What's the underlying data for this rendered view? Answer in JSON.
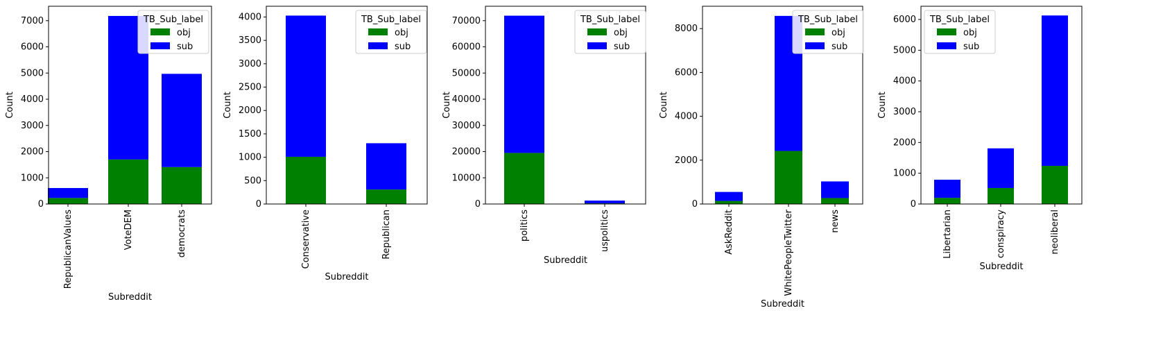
{
  "legend_title": "TB_Sub_label",
  "colors": {
    "obj": "#008000",
    "sub": "#0000ff"
  },
  "chart_data": [
    {
      "type": "bar",
      "stacked": true,
      "categories": [
        "RepublicanValues",
        "VoteDEM",
        "democrats"
      ],
      "series": [
        {
          "name": "obj",
          "values": [
            230,
            1700,
            1410
          ]
        },
        {
          "name": "sub",
          "values": [
            380,
            5480,
            3560
          ]
        }
      ],
      "xlabel": "Subreddit",
      "ylabel": "Count",
      "ylim": [
        0,
        7550
      ],
      "yticks": [
        "0",
        "1000",
        "2000",
        "3000",
        "4000",
        "5000",
        "6000",
        "7000"
      ],
      "legend": "top-right"
    },
    {
      "type": "bar",
      "stacked": true,
      "categories": [
        "Conservative",
        "Republican"
      ],
      "series": [
        {
          "name": "obj",
          "values": [
            1010,
            310
          ]
        },
        {
          "name": "sub",
          "values": [
            3020,
            990
          ]
        }
      ],
      "xlabel": "Subreddit",
      "ylabel": "Count",
      "ylim": [
        0,
        4230
      ],
      "yticks": [
        "0",
        "500",
        "1000",
        "1500",
        "2000",
        "2500",
        "3000",
        "3500",
        "4000"
      ],
      "legend": "top-right"
    },
    {
      "type": "bar",
      "stacked": true,
      "categories": [
        "politics",
        "uspolitics"
      ],
      "series": [
        {
          "name": "obj",
          "values": [
            19500,
            250
          ]
        },
        {
          "name": "sub",
          "values": [
            52400,
            1050
          ]
        }
      ],
      "xlabel": "Subreddit",
      "ylabel": "Count",
      "ylim": [
        0,
        75500
      ],
      "yticks": [
        "0",
        "10000",
        "20000",
        "30000",
        "40000",
        "50000",
        "60000",
        "70000"
      ],
      "legend": "top-right"
    },
    {
      "type": "bar",
      "stacked": true,
      "categories": [
        "AskReddit",
        "WhitePeopleTwitter",
        "news"
      ],
      "series": [
        {
          "name": "obj",
          "values": [
            140,
            2420,
            270
          ]
        },
        {
          "name": "sub",
          "values": [
            410,
            6160,
            760
          ]
        }
      ],
      "xlabel": "Subreddit",
      "ylabel": "Count",
      "ylim": [
        0,
        9020
      ],
      "yticks": [
        "0",
        "2000",
        "4000",
        "6000",
        "8000"
      ],
      "legend": "top-right"
    },
    {
      "type": "bar",
      "stacked": true,
      "categories": [
        "Libertarian",
        "conspiracy",
        "neoliberal"
      ],
      "series": [
        {
          "name": "obj",
          "values": [
            200,
            520,
            1240
          ]
        },
        {
          "name": "sub",
          "values": [
            590,
            1290,
            4890
          ]
        }
      ],
      "xlabel": "Subreddit",
      "ylabel": "Count",
      "ylim": [
        0,
        6430
      ],
      "yticks": [
        "0",
        "1000",
        "2000",
        "3000",
        "4000",
        "5000",
        "6000"
      ],
      "legend": "top-left"
    }
  ]
}
